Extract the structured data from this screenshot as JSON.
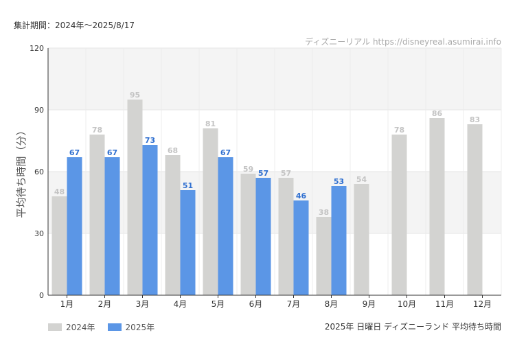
{
  "period_label": "集計期間：2024年～2025/8/17",
  "footer_caption": "2025年 日曜日 ディズニーランド 平均待ち時間",
  "colors": {
    "series_2024": "#d3d3d1",
    "series_2025": "#5b96e6",
    "label_2024": "#c4c4c4",
    "label_2025": "#2f6fd0"
  },
  "chart_data": {
    "type": "bar",
    "source_note": "ディズニーリアル https://disneyreal.asumirai.info",
    "ylabel": "平均待ち時間（分）",
    "ylim": [
      0,
      120
    ],
    "yticks": [
      0,
      30,
      60,
      90,
      120
    ],
    "categories": [
      "1月",
      "2月",
      "3月",
      "4月",
      "5月",
      "6月",
      "7月",
      "8月",
      "9月",
      "10月",
      "11月",
      "12月"
    ],
    "series": [
      {
        "name": "2024年",
        "values": [
          48,
          78,
          95,
          68,
          81,
          59,
          57,
          38,
          54,
          78,
          86,
          83
        ]
      },
      {
        "name": "2025年",
        "values": [
          67,
          67,
          73,
          51,
          67,
          57,
          46,
          53,
          null,
          null,
          null,
          null
        ]
      }
    ],
    "legend_position": "bottom-left",
    "grid": true
  }
}
